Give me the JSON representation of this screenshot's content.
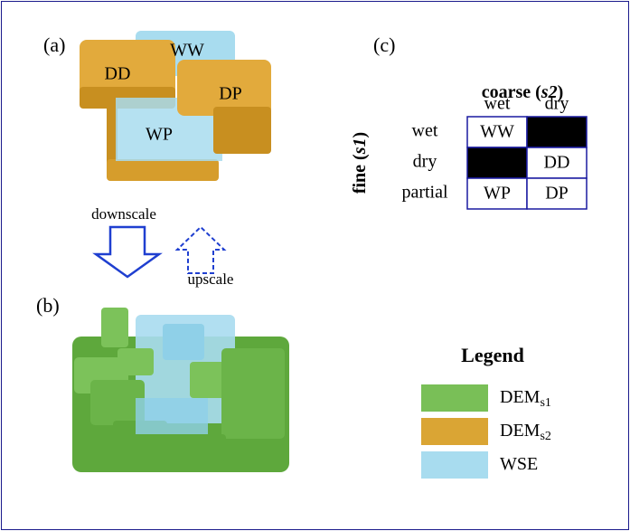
{
  "panel_a": {
    "label": "(a)",
    "blocks": [
      "WW",
      "DD",
      "DP",
      "WP"
    ]
  },
  "panel_b": {
    "label": "(b)"
  },
  "arrows": {
    "down": "downscale",
    "up": "upscale"
  },
  "panel_c": {
    "label": "(c)",
    "column_title": {
      "prefix": "coarse (",
      "italic": "s2",
      "suffix": ")"
    },
    "row_title": {
      "prefix": "fine (",
      "italic": "s1",
      "suffix": ")"
    },
    "columns": [
      "wet",
      "dry"
    ],
    "rows": [
      {
        "label": "wet",
        "cells": [
          "WW",
          null
        ]
      },
      {
        "label": "dry",
        "cells": [
          null,
          "DD"
        ]
      },
      {
        "label": "partial",
        "cells": [
          "WP",
          "DP"
        ]
      }
    ]
  },
  "legend": {
    "title": "Legend",
    "items": [
      {
        "text": "DEM",
        "sub": "s1"
      },
      {
        "text": "DEM",
        "sub": "s2"
      },
      {
        "text": "WSE"
      }
    ]
  }
}
